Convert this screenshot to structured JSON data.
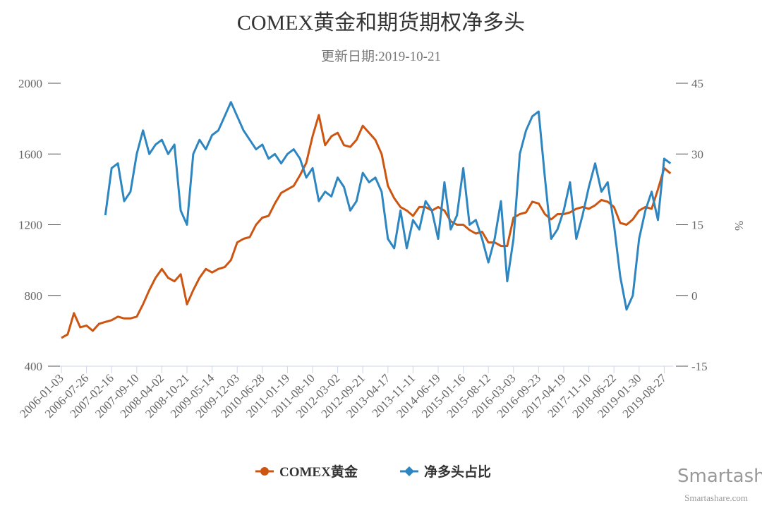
{
  "chart_data": {
    "type": "line",
    "title": "COMEX黄金和期货期权净多头",
    "subtitle": "更新日期:2019-10-21",
    "y2_label": "%",
    "watermark": "Smartashare",
    "watermark_url": "Smartashare.com",
    "categories": [
      "2006-01-03",
      null,
      null,
      null,
      "2006-07-26",
      null,
      null,
      null,
      "2007-02-16",
      null,
      null,
      null,
      "2007-09-10",
      null,
      null,
      null,
      "2008-04-02",
      null,
      null,
      null,
      "2008-10-21",
      null,
      null,
      null,
      "2009-05-14",
      null,
      null,
      null,
      "2009-12-03",
      null,
      null,
      null,
      "2010-06-28",
      null,
      null,
      null,
      "2011-01-19",
      null,
      null,
      null,
      "2011-08-10",
      null,
      null,
      null,
      "2012-03-02",
      null,
      null,
      null,
      "2012-09-21",
      null,
      null,
      null,
      "2013-04-17",
      null,
      null,
      null,
      "2013-11-11",
      null,
      null,
      null,
      "2014-06-19",
      null,
      null,
      null,
      "2015-01-16",
      null,
      null,
      null,
      "2015-08-12",
      null,
      null,
      null,
      "2016-03-03",
      null,
      null,
      null,
      "2016-09-23",
      null,
      null,
      null,
      "2017-04-19",
      null,
      null,
      null,
      "2017-11-10",
      null,
      null,
      null,
      "2018-06-22",
      null,
      null,
      null,
      "2019-01-30",
      null,
      null,
      null,
      "2019-08-27",
      null
    ],
    "series": [
      {
        "name": "COMEX黄金",
        "color": "#cc5511",
        "values": [
          560,
          580,
          700,
          620,
          630,
          600,
          640,
          650,
          660,
          680,
          670,
          670,
          680,
          750,
          830,
          900,
          950,
          900,
          880,
          920,
          750,
          830,
          900,
          950,
          930,
          950,
          960,
          1000,
          1100,
          1120,
          1130,
          1200,
          1240,
          1250,
          1320,
          1380,
          1400,
          1420,
          1480,
          1550,
          1700,
          1820,
          1650,
          1700,
          1720,
          1650,
          1640,
          1680,
          1760,
          1720,
          1680,
          1600,
          1420,
          1350,
          1300,
          1280,
          1250,
          1300,
          1300,
          1280,
          1300,
          1280,
          1220,
          1200,
          1200,
          1170,
          1150,
          1160,
          1100,
          1100,
          1080,
          1080,
          1240,
          1260,
          1270,
          1330,
          1320,
          1260,
          1230,
          1260,
          1260,
          1270,
          1290,
          1300,
          1290,
          1310,
          1340,
          1330,
          1300,
          1210,
          1200,
          1230,
          1280,
          1300,
          1290,
          1400,
          1520,
          1490
        ]
      },
      {
        "name": "净多头占比",
        "color": "#2e86c1",
        "axis": "y2",
        "values": [
          null,
          null,
          null,
          null,
          null,
          null,
          null,
          17,
          27,
          28,
          20,
          22,
          30,
          35,
          30,
          32,
          33,
          30,
          32,
          18,
          15,
          30,
          33,
          31,
          34,
          35,
          38,
          41,
          38,
          35,
          33,
          31,
          32,
          29,
          30,
          28,
          30,
          31,
          29,
          25,
          27,
          20,
          22,
          21,
          25,
          23,
          18,
          20,
          26,
          24,
          25,
          22,
          12,
          10,
          18,
          10,
          16,
          14,
          20,
          18,
          12,
          24,
          14,
          17,
          27,
          15,
          16,
          12,
          7,
          12,
          20,
          3,
          12,
          30,
          35,
          38,
          39,
          25,
          12,
          14,
          18,
          24,
          12,
          17,
          23,
          28,
          22,
          24,
          15,
          4,
          -3,
          0,
          12,
          18,
          22,
          16,
          29,
          28
        ]
      }
    ],
    "ylim": [
      400,
      2000
    ],
    "yticks": [
      400,
      800,
      1200,
      1600,
      2000
    ],
    "y2lim": [
      -15,
      45
    ],
    "y2ticks": [
      -15,
      0,
      15,
      30,
      45
    ],
    "legend": "bottom"
  }
}
